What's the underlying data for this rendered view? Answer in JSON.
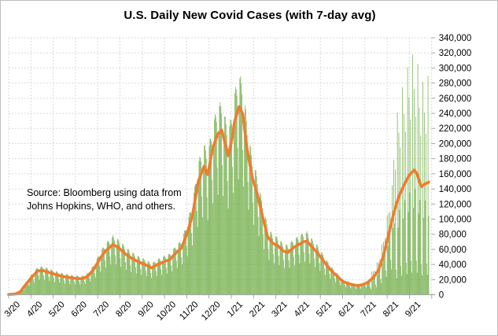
{
  "title": "U.S. Daily New Covid Cases (with 7-day avg)",
  "annotation": {
    "line1": "Source:  Bloomberg using data from",
    "line2": "Johns Hopkins, WHO, and others."
  },
  "chart_data": {
    "type": "bar+line",
    "title": "U.S. Daily New Covid Cases (with 7-day avg)",
    "x_axis": {
      "tick_labels": [
        "3/20",
        "4/20",
        "5/20",
        "6/20",
        "7/20",
        "8/20",
        "9/20",
        "10/20",
        "11/20",
        "12/20",
        "1/21",
        "2/21",
        "3/21",
        "4/21",
        "5/21",
        "6/21",
        "7/21",
        "8/21",
        "9/21"
      ],
      "month_intervals": 19,
      "days_span": 580,
      "label_rotation_deg": -45
    },
    "y_axis": {
      "min": 0,
      "max": 340000,
      "step": 20000,
      "side": "right",
      "tick_labels": [
        "0",
        "20,000",
        "40,000",
        "60,000",
        "80,000",
        "100,000",
        "120,000",
        "140,000",
        "160,000",
        "180,000",
        "200,000",
        "220,000",
        "240,000",
        "260,000",
        "280,000",
        "300,000",
        "320,000",
        "340,000"
      ]
    },
    "grid": {
      "on": true,
      "color": "#D9D9D9",
      "dash": "2 2"
    },
    "axis_color": "#A6A6A6",
    "text_color": "#000000",
    "series": [
      {
        "name": "daily-new-cases",
        "type": "bar",
        "color": "#70AD47"
      },
      {
        "name": "7-day-average",
        "type": "line",
        "color": "#ED7D31",
        "stroke_width": 3.6
      }
    ],
    "avg_keypoints": [
      [
        0,
        300
      ],
      [
        9,
        900
      ],
      [
        16,
        4000
      ],
      [
        23,
        13000
      ],
      [
        31,
        22500
      ],
      [
        40,
        31500
      ],
      [
        47,
        32000
      ],
      [
        55,
        29500
      ],
      [
        65,
        26500
      ],
      [
        75,
        24000
      ],
      [
        88,
        22000
      ],
      [
        100,
        21000
      ],
      [
        108,
        24000
      ],
      [
        117,
        34000
      ],
      [
        126,
        49000
      ],
      [
        133,
        58000
      ],
      [
        143,
        66500
      ],
      [
        151,
        62000
      ],
      [
        160,
        54000
      ],
      [
        169,
        48000
      ],
      [
        179,
        43000
      ],
      [
        188,
        39500
      ],
      [
        196,
        35500
      ],
      [
        204,
        40000
      ],
      [
        214,
        44000
      ],
      [
        221,
        46500
      ],
      [
        229,
        55000
      ],
      [
        237,
        62000
      ],
      [
        245,
        82000
      ],
      [
        252,
        105000
      ],
      [
        260,
        150000
      ],
      [
        268,
        170000
      ],
      [
        273,
        159000
      ],
      [
        280,
        195000
      ],
      [
        287,
        213000
      ],
      [
        292,
        218000
      ],
      [
        298,
        196000
      ],
      [
        301,
        184000
      ],
      [
        306,
        205000
      ],
      [
        310,
        230000
      ],
      [
        316,
        249000
      ],
      [
        321,
        239000
      ],
      [
        327,
        192000
      ],
      [
        334,
        155000
      ],
      [
        341,
        133000
      ],
      [
        348,
        104000
      ],
      [
        355,
        77000
      ],
      [
        362,
        68000
      ],
      [
        369,
        65000
      ],
      [
        376,
        58000
      ],
      [
        383,
        56000
      ],
      [
        390,
        62000
      ],
      [
        397,
        66000
      ],
      [
        404,
        70000
      ],
      [
        409,
        71000
      ],
      [
        416,
        63000
      ],
      [
        423,
        56000
      ],
      [
        430,
        47000
      ],
      [
        437,
        38000
      ],
      [
        444,
        30000
      ],
      [
        451,
        24000
      ],
      [
        458,
        17500
      ],
      [
        465,
        15000
      ],
      [
        472,
        13000
      ],
      [
        479,
        12000
      ],
      [
        486,
        13500
      ],
      [
        493,
        16500
      ],
      [
        500,
        23000
      ],
      [
        507,
        32000
      ],
      [
        514,
        52000
      ],
      [
        521,
        80000
      ],
      [
        528,
        108000
      ],
      [
        535,
        130000
      ],
      [
        542,
        145000
      ],
      [
        549,
        158000
      ],
      [
        556,
        165000
      ],
      [
        560,
        160000
      ],
      [
        563,
        150000
      ],
      [
        566,
        143000
      ],
      [
        570,
        146000
      ],
      [
        574,
        148000
      ],
      [
        576,
        149000
      ]
    ],
    "start_weekday": 0,
    "weekday_factors": [
      0.62,
      0.98,
      1.16,
      1.18,
      1.15,
      1.1,
      0.8
    ],
    "factor_overrides": [
      {
        "from": 496,
        "to": 527,
        "factors": [
          0.35,
          1.45,
          0.85,
          1.35,
          1.0,
          1.25,
          0.5
        ]
      },
      {
        "from": 528,
        "to": 576,
        "factors": [
          0.18,
          1.95,
          0.7,
          1.65,
          0.85,
          1.45,
          0.28
        ]
      }
    ],
    "bar_days_rendered": 577
  }
}
